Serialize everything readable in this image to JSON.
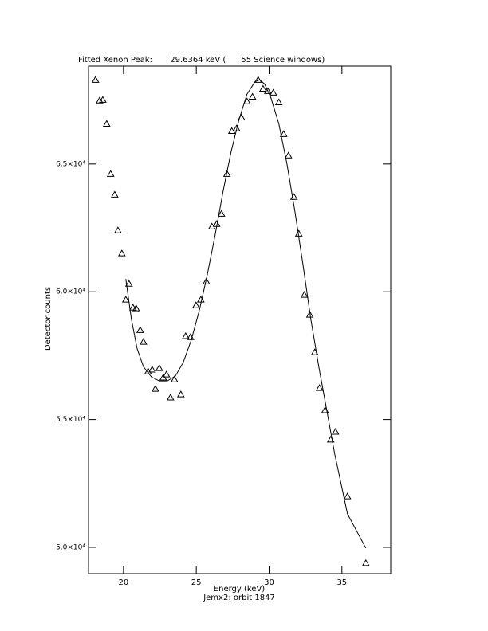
{
  "chart_data": {
    "type": "scatter",
    "title": "Fitted Xenon Peak:       29.6364 keV (      55 Science windows)",
    "x_label": "Energy (keV)",
    "subtitle": "Jemx2: orbit 1847",
    "y_label": "Detector counts",
    "xlim": [
      17.6,
      38.35
    ],
    "ylim": [
      48970,
      68830
    ],
    "xticks": [
      20,
      25,
      30,
      35
    ],
    "yticks": [
      {
        "value": 50000,
        "label": "5.0×10⁴"
      },
      {
        "value": 55000,
        "label": "5.5×10⁴"
      },
      {
        "value": 60000,
        "label": "6.0×10⁴"
      },
      {
        "value": 65000,
        "label": "6.5×10⁴"
      }
    ],
    "series": [
      {
        "marker": "triangle",
        "color": "#000000",
        "x": [
          18.08,
          18.36,
          18.58,
          18.85,
          19.12,
          19.4,
          19.62,
          19.89,
          20.16,
          20.38,
          20.65,
          20.87,
          21.15,
          21.37,
          21.69,
          21.97,
          22.19,
          22.46,
          22.73,
          22.95,
          23.23,
          23.5,
          23.94,
          24.27,
          24.6,
          24.98,
          25.31,
          25.69,
          26.07,
          26.4,
          26.73,
          27.11,
          27.44,
          27.77,
          28.1,
          28.48,
          28.86,
          29.25,
          29.58,
          29.91,
          30.29,
          30.67,
          31.0,
          31.33,
          31.71,
          32.04,
          32.42,
          32.8,
          33.13,
          33.46,
          33.84,
          34.23,
          34.56,
          35.38,
          36.64
        ],
        "values": [
          68290,
          67480,
          67510,
          66570,
          64610,
          63800,
          62400,
          61500,
          59690,
          60310,
          59380,
          59350,
          58500,
          58040,
          56880,
          56950,
          56200,
          57010,
          56640,
          56760,
          55860,
          56570,
          55980,
          58260,
          58220,
          59470,
          59690,
          60400,
          62550,
          62650,
          63050,
          64610,
          66290,
          66390,
          66820,
          67450,
          67630,
          68290,
          67940,
          67850,
          67790,
          67410,
          66170,
          65330,
          63710,
          62270,
          59880,
          59100,
          57630,
          56230,
          55360,
          54210,
          54520,
          51990,
          49380
        ]
      },
      {
        "marker": "line",
        "color": "#000000",
        "x": [
          20.16,
          20.54,
          20.93,
          21.37,
          21.91,
          22.46,
          23.01,
          23.56,
          24.1,
          24.65,
          25.2,
          25.75,
          26.29,
          26.84,
          27.39,
          27.93,
          28.48,
          29.03,
          29.36,
          29.69,
          30.12,
          30.67,
          31.22,
          31.77,
          32.31,
          32.86,
          33.41,
          33.96,
          34.51,
          35.38,
          36.64
        ],
        "values": [
          60500,
          58940,
          57790,
          57070,
          56670,
          56510,
          56510,
          56700,
          57230,
          58100,
          59250,
          60650,
          62210,
          63930,
          65480,
          66730,
          67730,
          68220,
          68290,
          68130,
          67600,
          66570,
          65020,
          63150,
          61120,
          58940,
          57070,
          55360,
          53640,
          51310,
          49970
        ]
      }
    ]
  }
}
